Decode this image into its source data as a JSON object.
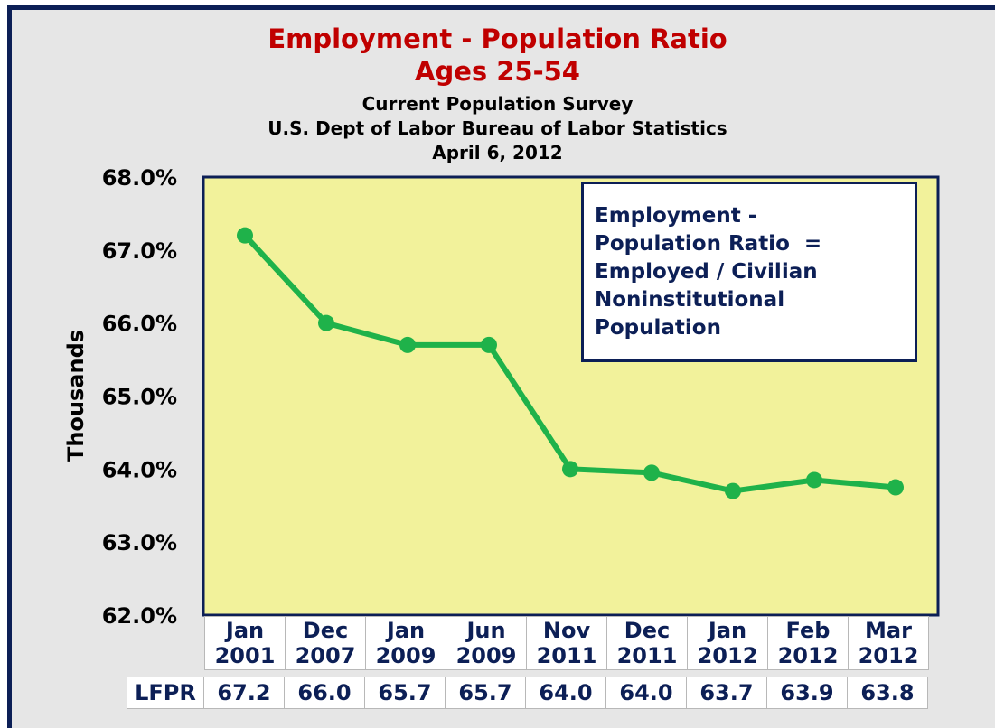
{
  "chart_data": {
    "type": "line",
    "title": "Employment - Population Ratio",
    "title_line2": "Ages 25-54",
    "subtitle_lines": [
      "Current Population Survey",
      "U.S. Dept of Labor Bureau of Labor Statistics",
      "April 6, 2012"
    ],
    "ylabel": "Thousands",
    "xlabel": "",
    "ylim": [
      62.0,
      68.0
    ],
    "yticks": [
      "62.0%",
      "63.0%",
      "64.0%",
      "65.0%",
      "66.0%",
      "67.0%",
      "68.0%"
    ],
    "categories": [
      {
        "month": "Jan",
        "year": "2001"
      },
      {
        "month": "Dec",
        "year": "2007"
      },
      {
        "month": "Jan",
        "year": "2009"
      },
      {
        "month": "Jun",
        "year": "2009"
      },
      {
        "month": "Nov",
        "year": "2011"
      },
      {
        "month": "Dec",
        "year": "2011"
      },
      {
        "month": "Jan",
        "year": "2012"
      },
      {
        "month": "Feb",
        "year": "2012"
      },
      {
        "month": "Mar",
        "year": "2012"
      }
    ],
    "series": [
      {
        "values": [
          67.2,
          66.0,
          65.7,
          65.7,
          64.0,
          63.95,
          63.7,
          63.85,
          63.75
        ]
      }
    ],
    "table_row": {
      "label": "LFPR",
      "values": [
        "67.2",
        "66.0",
        "65.7",
        "65.7",
        "64.0",
        "64.0",
        "63.7",
        "63.9",
        "63.8"
      ]
    },
    "annotation_lines": [
      "Employment -",
      "Population Ratio  =",
      "Employed / Civilian",
      "Noninstitutional",
      "Population"
    ],
    "grid": false,
    "colors": {
      "line": "#1fb24a",
      "plot_background": "#f2f29b",
      "plot_border": "#0c1f56",
      "title": "#c00000",
      "table_text": "#0c1f56",
      "frame": "#0c1f56",
      "background": "#e6e6e6"
    }
  }
}
